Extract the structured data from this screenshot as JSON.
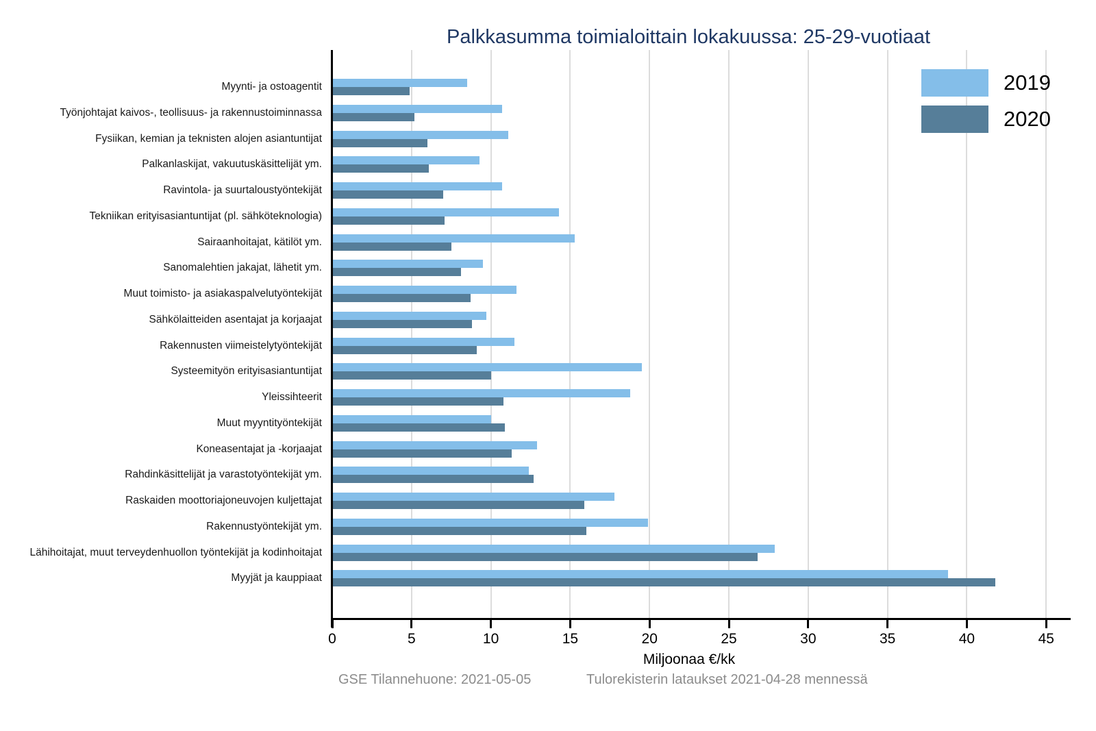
{
  "title": "Palkkasumma toimialoittain lokakuussa: 25-29-vuotiaat",
  "colors": {
    "series2019": "#84BEE9",
    "series2020": "#567E99",
    "title": "#1F3864",
    "footer": "#8C8C8C",
    "gridline": "#DCDCDC",
    "axis": "#000000"
  },
  "footer": {
    "left": "GSE Tilannehuone: 2021-05-05",
    "right": "Tulorekisterin lataukset 2021-04-28 mennessä"
  },
  "chart_data": {
    "type": "bar",
    "orientation": "horizontal",
    "title": "Palkkasumma toimialoittain lokakuussa: 25-29-vuotiaat",
    "xlabel": "Miljoonaa €/kk",
    "ylabel": "",
    "xlim": [
      0,
      46.5
    ],
    "xticks": [
      0,
      5,
      10,
      15,
      20,
      25,
      30,
      35,
      40,
      45
    ],
    "grid": true,
    "legend_position": "top-right",
    "categories": [
      "Myynti- ja ostoagentit",
      "Työnjohtajat kaivos-, teollisuus- ja rakennustoiminnassa",
      "Fysiikan, kemian ja teknisten alojen asiantuntijat",
      "Palkanlaskijat, vakuutuskäsittelijät ym.",
      "Ravintola- ja suurtaloustyöntekijät",
      "Tekniikan erityisasiantuntijat (pl. sähköteknologia)",
      "Sairaanhoitajat, kätilöt ym.",
      "Sanomalehtien jakajat, lähetit ym.",
      "Muut toimisto- ja asiakaspalvelutyöntekijät",
      "Sähkölaitteiden asentajat ja korjaajat",
      "Rakennusten viimeistelytyöntekijät",
      "Systeemityön erityisasiantuntijat",
      "Yleissihteerit",
      "Muut myyntityöntekijät",
      "Koneasentajat ja -korjaajat",
      "Rahdinkäsittelijät ja varastotyöntekijät ym.",
      "Raskaiden moottoriajoneuvojen kuljettajat",
      "Rakennustyöntekijät ym.",
      "Lähihoitajat, muut terveydenhuollon työntekijät ja kodinhoitajat",
      "Myyjät ja kauppiaat"
    ],
    "series": [
      {
        "name": "2019",
        "color": "#84BEE9",
        "values": [
          8.5,
          10.7,
          11.1,
          9.3,
          10.7,
          14.3,
          15.3,
          9.5,
          11.6,
          9.7,
          11.5,
          19.5,
          18.8,
          10.0,
          12.9,
          12.4,
          17.8,
          19.9,
          27.9,
          38.8
        ]
      },
      {
        "name": "2020",
        "color": "#567E99",
        "values": [
          4.9,
          5.2,
          6.0,
          6.1,
          7.0,
          7.1,
          7.5,
          8.1,
          8.7,
          8.8,
          9.1,
          10.0,
          10.8,
          10.9,
          11.3,
          12.7,
          15.9,
          16.0,
          26.8,
          41.8
        ]
      }
    ]
  }
}
